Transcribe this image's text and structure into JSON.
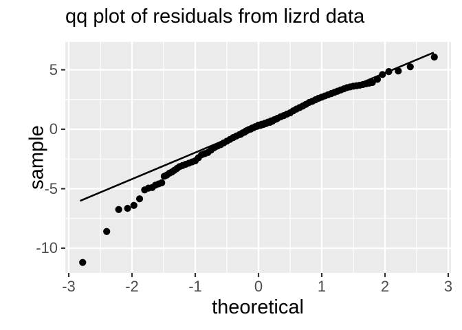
{
  "title": "qq plot of residuals from lizrd data",
  "colors": {
    "background": "#FFFFFF",
    "panel_bg": "#EBEBEB",
    "grid": "#FFFFFF",
    "point": "#000000",
    "reference_line": "#000000",
    "axis_text": "#4D4D4D",
    "tick_mark": "#333333",
    "title_text": "#000000"
  },
  "chart_data": {
    "type": "scatter",
    "title": "qq plot of residuals from lizrd data",
    "xlabel": "theoretical",
    "ylabel": "sample",
    "x_ticks": [
      -3,
      -2,
      -1,
      0,
      1,
      2,
      3
    ],
    "y_ticks": [
      5,
      0,
      -5,
      -10
    ],
    "x_minor_ticks": [
      -2.5,
      -1.5,
      -0.5,
      0.5,
      1.5,
      2.5
    ],
    "y_minor_ticks": [
      2.5,
      -2.5,
      -7.5
    ],
    "xlim": [
      -3.05,
      3.04
    ],
    "ylim": [
      -12.08,
      7.34
    ],
    "grid": true,
    "legend_position": "none",
    "reference_line": {
      "x1": -2.82,
      "y1": -6.02,
      "x2": 2.77,
      "y2": 6.45,
      "slope": 2.23,
      "intercept": 0.27
    },
    "points": [
      [
        -2.78,
        -11.2
      ],
      [
        -2.4,
        -8.6
      ],
      [
        -2.21,
        -6.75
      ],
      [
        -2.07,
        -6.65
      ],
      [
        -1.97,
        -6.4
      ],
      [
        -1.88,
        -5.85
      ],
      [
        -1.8,
        -5.1
      ],
      [
        -1.74,
        -4.95
      ],
      [
        -1.68,
        -4.9
      ],
      [
        -1.63,
        -4.7
      ],
      [
        -1.58,
        -4.6
      ],
      [
        -1.53,
        -4.5
      ],
      [
        -1.49,
        -3.95
      ],
      [
        -1.45,
        -3.85
      ],
      [
        -1.41,
        -3.7
      ],
      [
        -1.37,
        -3.6
      ],
      [
        -1.33,
        -3.45
      ],
      [
        -1.29,
        -3.3
      ],
      [
        -1.25,
        -3.15
      ],
      [
        -1.2,
        -3.05
      ],
      [
        -1.15,
        -2.95
      ],
      [
        -1.1,
        -2.85
      ],
      [
        -1.05,
        -2.75
      ],
      [
        -1.0,
        -2.65
      ],
      [
        -0.95,
        -2.4
      ],
      [
        -0.9,
        -2.15
      ],
      [
        -0.85,
        -2.05
      ],
      [
        -0.8,
        -1.95
      ],
      [
        -0.75,
        -1.75
      ],
      [
        -0.7,
        -1.55
      ],
      [
        -0.65,
        -1.42
      ],
      [
        -0.6,
        -1.3
      ],
      [
        -0.55,
        -1.15
      ],
      [
        -0.5,
        -1.0
      ],
      [
        -0.45,
        -0.85
      ],
      [
        -0.4,
        -0.7
      ],
      [
        -0.35,
        -0.57
      ],
      [
        -0.3,
        -0.45
      ],
      [
        -0.25,
        -0.3
      ],
      [
        -0.2,
        -0.15
      ],
      [
        -0.15,
        -0.02
      ],
      [
        -0.1,
        0.1
      ],
      [
        -0.05,
        0.22
      ],
      [
        0.0,
        0.35
      ],
      [
        0.05,
        0.42
      ],
      [
        0.1,
        0.5
      ],
      [
        0.15,
        0.6
      ],
      [
        0.2,
        0.7
      ],
      [
        0.25,
        0.8
      ],
      [
        0.3,
        0.92
      ],
      [
        0.35,
        1.05
      ],
      [
        0.4,
        1.15
      ],
      [
        0.45,
        1.27
      ],
      [
        0.5,
        1.38
      ],
      [
        0.55,
        1.55
      ],
      [
        0.6,
        1.7
      ],
      [
        0.65,
        1.82
      ],
      [
        0.7,
        1.95
      ],
      [
        0.75,
        2.1
      ],
      [
        0.8,
        2.25
      ],
      [
        0.85,
        2.35
      ],
      [
        0.9,
        2.48
      ],
      [
        0.95,
        2.6
      ],
      [
        1.0,
        2.7
      ],
      [
        1.05,
        2.8
      ],
      [
        1.1,
        2.9
      ],
      [
        1.15,
        3.0
      ],
      [
        1.2,
        3.1
      ],
      [
        1.25,
        3.2
      ],
      [
        1.3,
        3.3
      ],
      [
        1.35,
        3.4
      ],
      [
        1.4,
        3.5
      ],
      [
        1.45,
        3.56
      ],
      [
        1.5,
        3.62
      ],
      [
        1.55,
        3.66
      ],
      [
        1.6,
        3.7
      ],
      [
        1.65,
        3.76
      ],
      [
        1.7,
        3.82
      ],
      [
        1.75,
        3.87
      ],
      [
        1.8,
        3.93
      ],
      [
        -0.28,
        -0.42
      ],
      [
        -0.22,
        -0.25
      ],
      [
        -0.18,
        -0.1
      ],
      [
        -0.12,
        0.02
      ],
      [
        -0.08,
        0.12
      ],
      [
        -0.02,
        0.25
      ],
      [
        0.03,
        0.32
      ],
      [
        0.08,
        0.4
      ],
      [
        0.12,
        0.48
      ],
      [
        0.18,
        0.58
      ],
      [
        0.22,
        0.68
      ],
      [
        0.28,
        0.85
      ],
      [
        1.88,
        4.2
      ],
      [
        1.96,
        4.6
      ],
      [
        2.06,
        4.85
      ],
      [
        2.21,
        4.9
      ],
      [
        2.4,
        5.25
      ],
      [
        2.78,
        6.07
      ]
    ]
  }
}
